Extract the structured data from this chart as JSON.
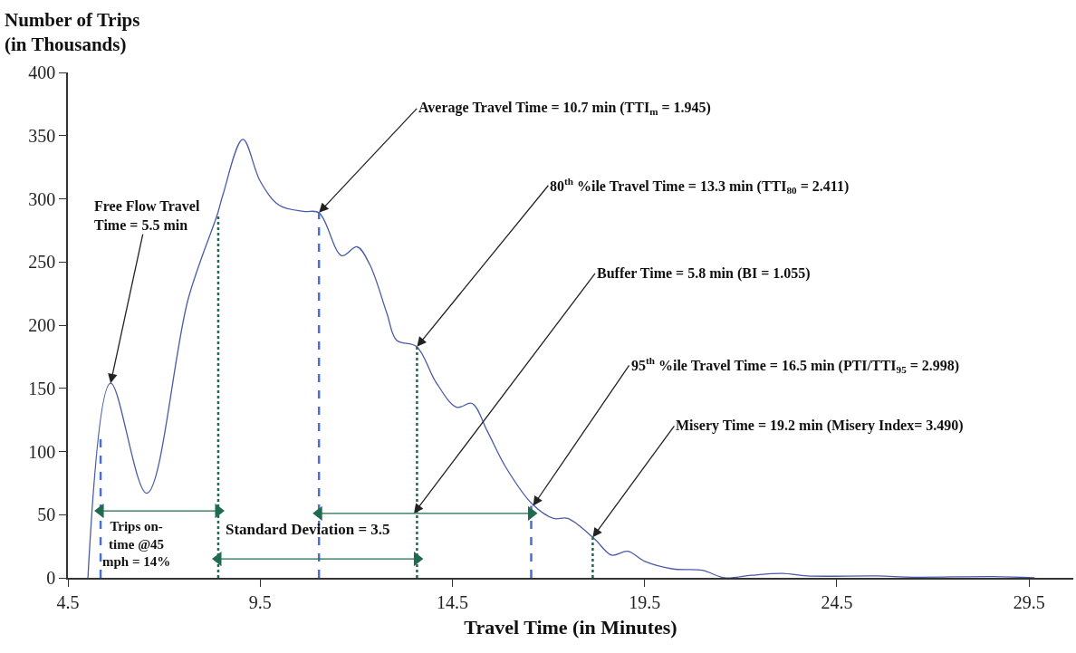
{
  "chart_data": {
    "type": "line",
    "xlabel": "Travel Time (in Minutes)",
    "ylabel": "Number of Trips\n(in Thousands)",
    "xlim": [
      4.5,
      30.65
    ],
    "xticks": [
      4.5,
      9.5,
      14.5,
      19.5,
      24.5,
      29.5
    ],
    "ylim": [
      0,
      400
    ],
    "yticks": [
      0,
      50,
      100,
      150,
      200,
      250,
      300,
      350,
      400
    ],
    "series": [
      {
        "color": "#4a5ba8",
        "line_style": "solid",
        "marker": "none",
        "x": [
          5.02,
          5.61,
          6.55,
          7.63,
          8.39,
          8.53,
          9.05,
          9.5,
          9.99,
          10.63,
          11.03,
          11.62,
          12.02,
          12.35,
          12.8,
          13.05,
          13.57,
          14.07,
          14.61,
          15.01,
          15.41,
          15.88,
          16.59,
          17.13,
          17.5,
          18.19,
          18.64,
          19.06,
          19.51,
          20.24,
          21.0,
          21.58,
          22.27,
          23.09,
          23.73,
          25.56,
          26.48,
          28.58,
          29.64
        ],
        "values": [
          0,
          154,
          67,
          221,
          288,
          303,
          347,
          314,
          295,
          290,
          289,
          255,
          262,
          248,
          209,
          188,
          183,
          155,
          135,
          138,
          116,
          88,
          58,
          47,
          47,
          31,
          18,
          21,
          13,
          7,
          6,
          0,
          2,
          3.5,
          1.5,
          1.5,
          0.5,
          1,
          0
        ]
      },
      {
        "color": "#4a6fd1",
        "line_style": "dashed",
        "marker": "none",
        "x": [
          5.35,
          5.35
        ],
        "values": [
          0,
          115
        ]
      },
      {
        "color": "#1f6b4f",
        "line_style": "dotted",
        "marker": "none",
        "x": [
          8.41,
          8.41
        ],
        "values": [
          0,
          288
        ]
      },
      {
        "color": "#4a6fd1",
        "line_style": "dashed",
        "marker": "none",
        "x": [
          11.03,
          11.03
        ],
        "values": [
          0,
          289
        ]
      },
      {
        "color": "#1f6b4f",
        "line_style": "dotted",
        "marker": "none",
        "x": [
          13.58,
          13.58
        ],
        "values": [
          0,
          183
        ]
      },
      {
        "color": "#4a6fd1",
        "line_style": "dashed",
        "marker": "none",
        "x": [
          16.55,
          16.55
        ],
        "values": [
          0,
          57
        ]
      },
      {
        "color": "#1f6b4f",
        "line_style": "dotted",
        "marker": "none",
        "x": [
          18.15,
          18.15
        ],
        "values": [
          0,
          32
        ]
      },
      {
        "color": "#1f6b4f",
        "line_style": "solid",
        "marker": "triangle",
        "x": [
          5.35,
          8.41
        ],
        "values": [
          53,
          53
        ]
      },
      {
        "color": "#1f6b4f",
        "line_style": "solid",
        "marker": "triangle",
        "x": [
          8.41,
          13.58
        ],
        "values": [
          15,
          15
        ]
      },
      {
        "color": "#1f6b4f",
        "line_style": "solid",
        "marker": "triangle",
        "x": [
          11.03,
          16.55
        ],
        "values": [
          51,
          51
        ]
      }
    ],
    "annotations": [
      {
        "text": "Free Flow Travel\nTime = 5.5 min",
        "x": 5.61,
        "y": 154
      },
      {
        "text": "Average Travel Time = 10.7 min (TTI$_{m}$ = 1.945)",
        "x": 11.03,
        "y": 289
      },
      {
        "text": "80$^{th}$ %ile Travel Time = 13.3 min (TTI$_{80}$ = 2.411)",
        "x": 13.58,
        "y": 183
      },
      {
        "text": "Buffer Time = 5.8 min (BI = 1.055)",
        "x": 13.5,
        "y": 51
      },
      {
        "text": "95$^{th}$ %ile Travel Time = 16.5 min (PTI/TTI$_{95}$ = 2.998)",
        "x": 16.6,
        "y": 57
      },
      {
        "text": "Misery Time = 19.2 min (Misery Index= 3.490)",
        "x": 18.15,
        "y": 32
      },
      "Trips on-\ntime @45\nmph = 14%",
      "Standard Deviation = 3.5"
    ]
  }
}
